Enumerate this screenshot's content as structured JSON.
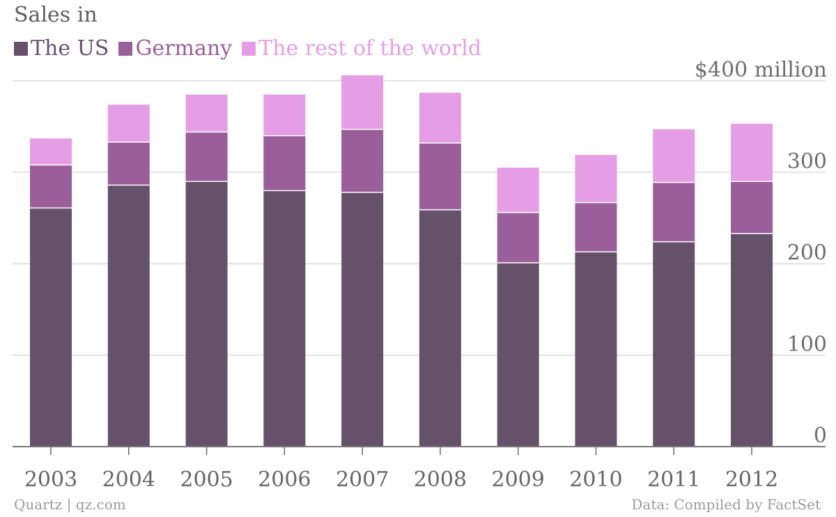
{
  "title": "Sales in",
  "legend": [
    {
      "label": "The US",
      "color": "#65526a"
    },
    {
      "label": "Germany",
      "color": "#9a5e9b"
    },
    {
      "label": "The rest of the world",
      "color": "#e59ee6"
    }
  ],
  "footer": {
    "source_left": "Quartz | qz.com",
    "source_right": "Data: Compiled by FactSet"
  },
  "chart_data": {
    "type": "bar",
    "stacked": true,
    "categories": [
      "2003",
      "2004",
      "2005",
      "2006",
      "2007",
      "2008",
      "2009",
      "2010",
      "2011",
      "2012"
    ],
    "series": [
      {
        "name": "The US",
        "color": "#65526a",
        "values": [
          261,
          286,
          290,
          280,
          278,
          259,
          201,
          213,
          224,
          233
        ]
      },
      {
        "name": "Germany",
        "color": "#9a5e9b",
        "values": [
          47,
          47,
          54,
          60,
          69,
          73,
          55,
          54,
          65,
          57
        ]
      },
      {
        "name": "The rest of the world",
        "color": "#e59ee6",
        "values": [
          29,
          41,
          41,
          45,
          59,
          55,
          49,
          52,
          58,
          63
        ]
      }
    ],
    "ylim": [
      0,
      400
    ],
    "yticks": [
      0,
      100,
      200,
      300,
      400
    ],
    "ytick_labels": [
      "0",
      "100",
      "200",
      "300",
      "$400 million"
    ],
    "grid": true,
    "legend_position": "top-left",
    "xlabel": "",
    "ylabel": ""
  }
}
